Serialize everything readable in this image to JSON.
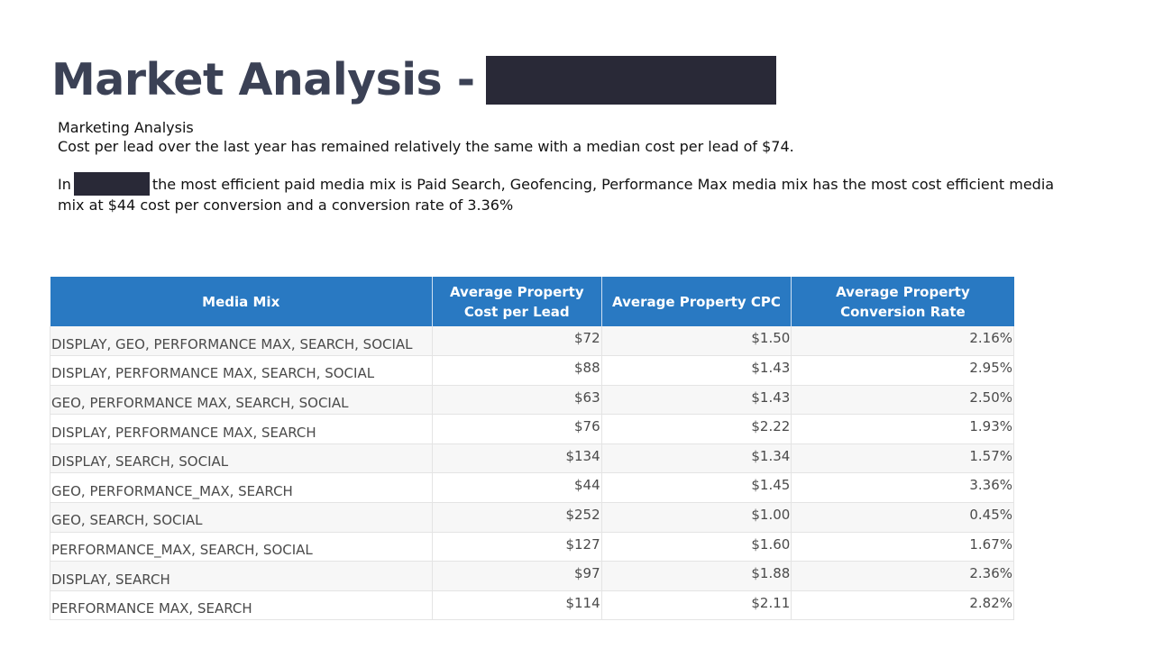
{
  "header": {
    "title": "Market Analysis -"
  },
  "analysis": {
    "heading": "Marketing Analysis",
    "line1": "Cost per lead over the last year has remained relatively the same with a median cost per lead of $74.",
    "para2_prefix": "In",
    "para2_body": "the most efficient paid media mix is Paid Search, Geofencing, Performance Max media mix has the most cost efficient media mix at $44 cost per conversion and a conversion rate of 3.36%"
  },
  "table": {
    "headers": [
      "Media Mix",
      "Average Property Cost per Lead",
      "Average Property CPC",
      "Average Property Conversion Rate"
    ],
    "rows": [
      [
        "DISPLAY, GEO, PERFORMANCE MAX, SEARCH, SOCIAL",
        "$72",
        "$1.50",
        "2.16%"
      ],
      [
        "DISPLAY, PERFORMANCE MAX, SEARCH, SOCIAL",
        "$88",
        "$1.43",
        "2.95%"
      ],
      [
        "GEO, PERFORMANCE MAX, SEARCH, SOCIAL",
        "$63",
        "$1.43",
        "2.50%"
      ],
      [
        "DISPLAY, PERFORMANCE MAX, SEARCH",
        "$76",
        "$2.22",
        "1.93%"
      ],
      [
        "DISPLAY, SEARCH, SOCIAL",
        "$134",
        "$1.34",
        "1.57%"
      ],
      [
        "GEO, PERFORMANCE_MAX, SEARCH",
        "$44",
        "$1.45",
        "3.36%"
      ],
      [
        "GEO, SEARCH, SOCIAL",
        "$252",
        "$1.00",
        "0.45%"
      ],
      [
        "PERFORMANCE_MAX, SEARCH, SOCIAL",
        "$127",
        "$1.60",
        "1.67%"
      ],
      [
        "DISPLAY, SEARCH",
        "$97",
        "$1.88",
        "2.36%"
      ],
      [
        "PERFORMANCE MAX, SEARCH",
        "$114",
        "$2.11",
        "2.82%"
      ]
    ]
  },
  "colors": {
    "title": "#3b4155",
    "header_bg": "#2979c2",
    "redaction": "#292937"
  }
}
